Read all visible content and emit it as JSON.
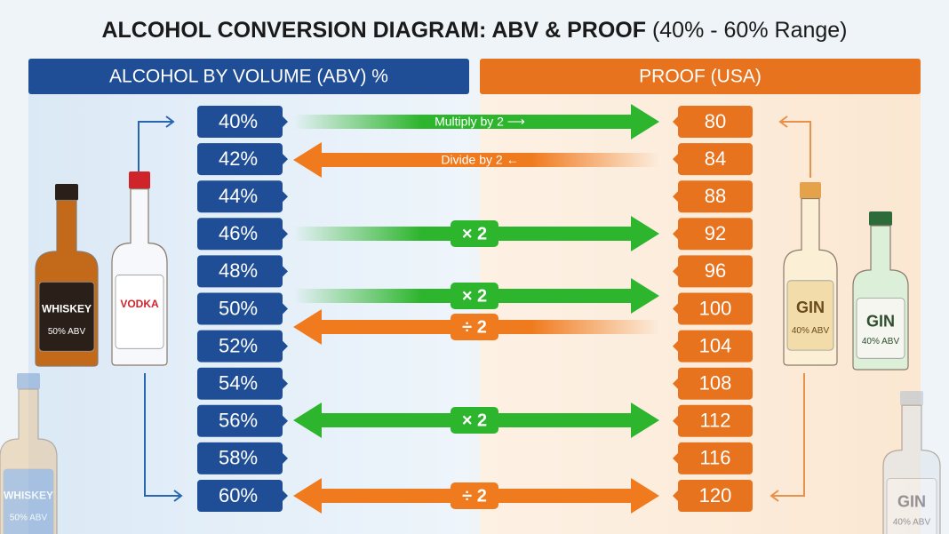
{
  "header": {
    "title": "ALCOHOL CONVERSION DIAGRAM: ABV & PROOF",
    "subtitle": "(40% - 60% Range)"
  },
  "columns": {
    "abv": "ALCOHOL BY VOLUME (ABV) %",
    "proof": "PROOF (USA)"
  },
  "rows": [
    {
      "abv": "40%",
      "proof": "80"
    },
    {
      "abv": "42%",
      "proof": "84"
    },
    {
      "abv": "44%",
      "proof": "88"
    },
    {
      "abv": "46%",
      "proof": "92"
    },
    {
      "abv": "48%",
      "proof": "96"
    },
    {
      "abv": "50%",
      "proof": "100"
    },
    {
      "abv": "52%",
      "proof": "104"
    },
    {
      "abv": "54%",
      "proof": "108"
    },
    {
      "abv": "56%",
      "proof": "112"
    },
    {
      "abv": "58%",
      "proof": "116"
    },
    {
      "abv": "60%",
      "proof": "120"
    }
  ],
  "arrows": [
    {
      "label": "Multiply by 2 ⟶",
      "direction": "right",
      "color": "#2db52d"
    },
    {
      "label": "Divide by 2 ←",
      "direction": "left",
      "color": "#f07a1e"
    },
    {
      "label": "× 2",
      "direction": "right",
      "color": "#2db52d"
    },
    {
      "label": "× 2",
      "direction": "right",
      "color": "#2db52d"
    },
    {
      "label": "÷ 2",
      "direction": "left",
      "color": "#f07a1e"
    },
    {
      "label": "× 2",
      "direction": "both",
      "color": "#2db52d"
    },
    {
      "label": "÷ 2",
      "direction": "both",
      "color": "#f07a1e"
    }
  ],
  "bottles": [
    {
      "label": "WHISKEY",
      "note": "50% ABV"
    },
    {
      "label": "VODKA"
    },
    {
      "label": "GIN",
      "note": "40% ABV"
    },
    {
      "label": "GIN",
      "note": "40% ABV"
    },
    {
      "label": "WHISKEY",
      "note": "50% ABV"
    },
    {
      "label": "GIN",
      "note": "40% ABV"
    }
  ]
}
